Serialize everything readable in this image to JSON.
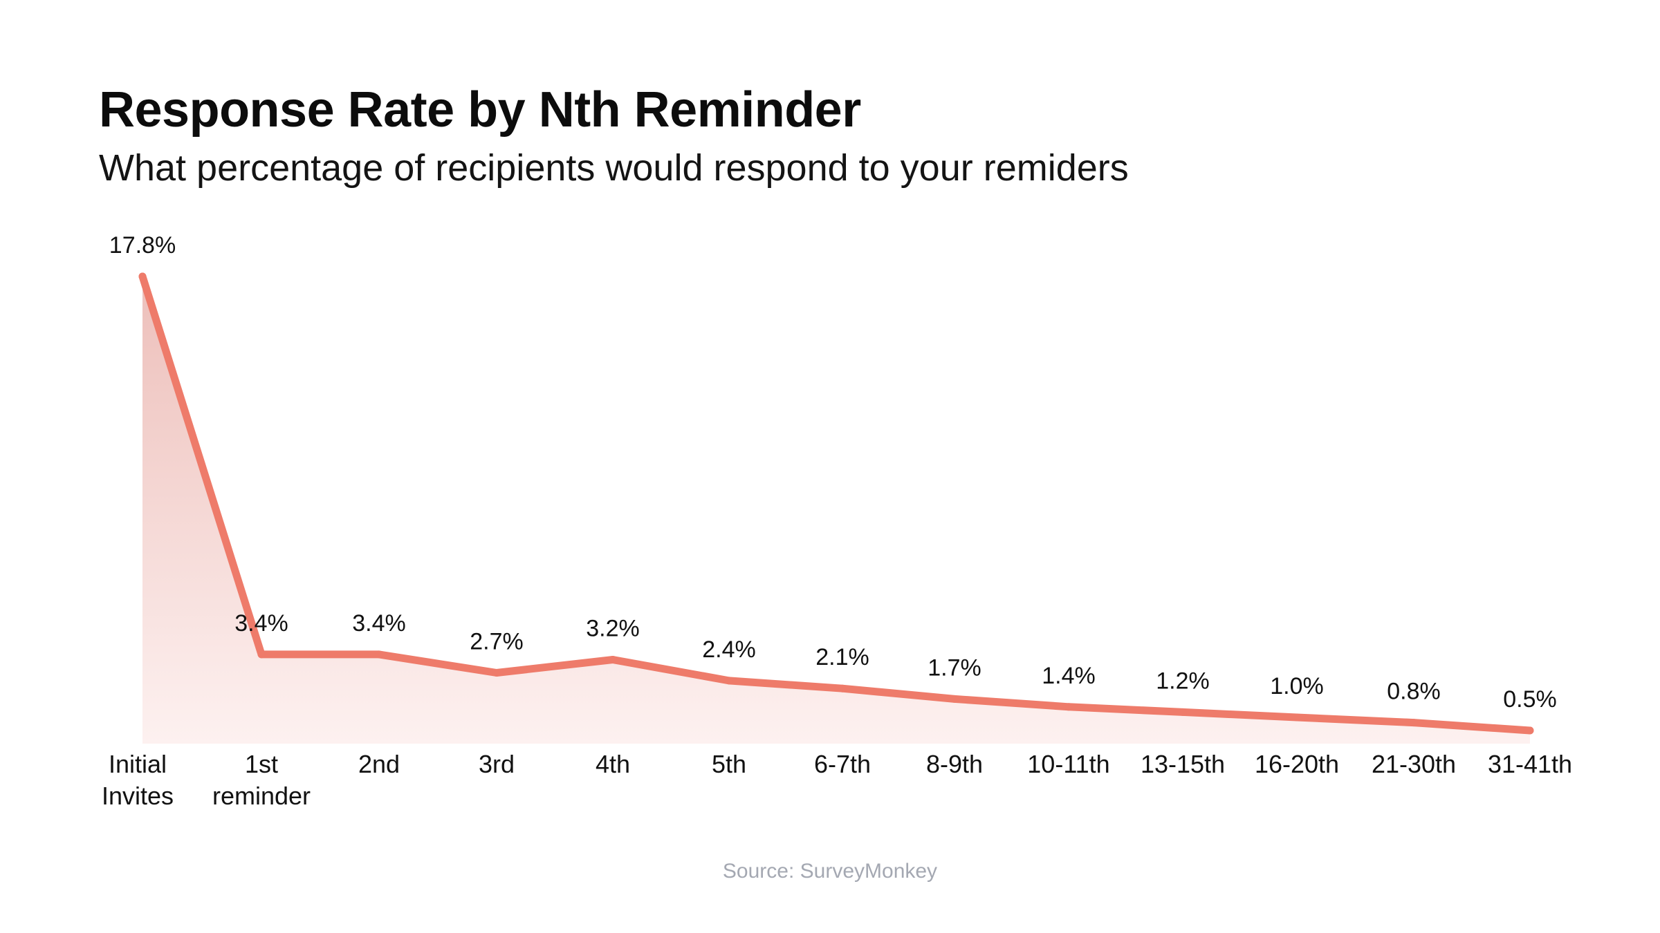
{
  "title": "Response Rate by Nth Reminder",
  "subtitle": "What percentage of recipients would respond to your remiders",
  "source": "Source: SurveyMonkey",
  "colors": {
    "line": "#ee7b6a",
    "area_top": "#edbfba",
    "area_bottom": "#fdf1f0",
    "label": "#111111"
  },
  "chart_data": {
    "type": "area",
    "title": "Response Rate by Nth Reminder",
    "subtitle": "What percentage of recipients would respond to your remiders",
    "xlabel": "",
    "ylabel": "",
    "ylim": [
      0,
      17.8
    ],
    "grid": false,
    "categories": [
      [
        "Initial",
        "Invites"
      ],
      [
        "1st",
        "reminder"
      ],
      [
        "2nd"
      ],
      [
        "3rd"
      ],
      [
        "4th"
      ],
      [
        "5th"
      ],
      [
        "6-7th"
      ],
      [
        "8-9th"
      ],
      [
        "10-11th"
      ],
      [
        "13-15th"
      ],
      [
        "16-20th"
      ],
      [
        "21-30th"
      ],
      [
        "31-41th"
      ]
    ],
    "values": [
      17.8,
      3.4,
      3.4,
      2.7,
      3.2,
      2.4,
      2.1,
      1.7,
      1.4,
      1.2,
      1.0,
      0.8,
      0.5
    ],
    "labels": [
      "17.8%",
      "3.4%",
      "3.4%",
      "2.7%",
      "3.2%",
      "2.4%",
      "2.1%",
      "1.7%",
      "1.4%",
      "1.2%",
      "1.0%",
      "0.8%",
      "0.5%"
    ]
  }
}
